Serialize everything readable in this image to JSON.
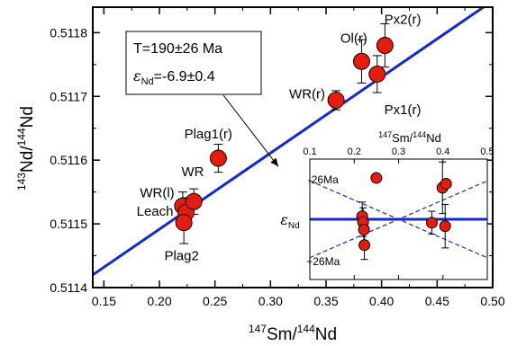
{
  "chart_data": [
    {
      "type": "scatter",
      "xlabel_parts": {
        "sup1": "147",
        "base1": "Sm/",
        "sup2": "144",
        "base2": "Nd"
      },
      "ylabel_parts": {
        "sup1": "143",
        "base1": "Nd/",
        "sup2": "144",
        "base2": "Nd"
      },
      "xlim": [
        0.14,
        0.5
      ],
      "ylim": [
        0.5114,
        0.51184
      ],
      "x_ticks": [
        "0.15",
        "0.20",
        "0.25",
        "0.30",
        "0.35",
        "0.40",
        "0.45",
        "0.50"
      ],
      "y_ticks": [
        "0.5114",
        "0.5115",
        "0.5116",
        "0.5117",
        "0.5118"
      ],
      "isochron": {
        "x": [
          0.14,
          0.5
        ],
        "y": [
          0.51142,
          0.51185
        ],
        "color": "#1428d8"
      },
      "annotation": {
        "line1": "T=190±26 Ma",
        "eps_symbol": "ε",
        "eps_sub": "Nd",
        "eps_value": "=-6.9±0.4",
        "arrow_to": {
          "x": 0.307,
          "y": 0.51159
        }
      },
      "points": [
        {
          "x": 0.221,
          "y": 0.511528,
          "err": 2.2e-05
        },
        {
          "x": 0.224,
          "y": 0.511518,
          "err": 2.3e-05
        },
        {
          "x": 0.222,
          "y": 0.511502,
          "err": 3.3e-05
        },
        {
          "x": 0.231,
          "y": 0.511535,
          "err": 2e-05
        },
        {
          "x": 0.253,
          "y": 0.511603,
          "err": 2.2e-05
        },
        {
          "x": 0.359,
          "y": 0.511694,
          "err": 1.5e-05
        },
        {
          "x": 0.382,
          "y": 0.511755,
          "err": 3.4e-05
        },
        {
          "x": 0.396,
          "y": 0.511735,
          "err": 2.9e-05
        },
        {
          "x": 0.403,
          "y": 0.51178,
          "err": 3.4e-05
        }
      ],
      "point_labels": [
        {
          "text": "Plag1(r)",
          "x": 0.244,
          "y": 0.511634
        },
        {
          "text": "WR",
          "x": 0.23,
          "y": 0.511575
        },
        {
          "text": "WR(l)",
          "x": 0.198,
          "y": 0.511542
        },
        {
          "text": "Leach",
          "x": 0.196,
          "y": 0.511513
        },
        {
          "text": "Plag2",
          "x": 0.22,
          "y": 0.511443
        },
        {
          "text": "WR(r)",
          "x": 0.333,
          "y": 0.511697
        },
        {
          "text": "Ol(r)",
          "x": 0.375,
          "y": 0.511784
        },
        {
          "text": "Px2(r)",
          "x": 0.419,
          "y": 0.511814
        },
        {
          "text": "Px1(r)",
          "x": 0.419,
          "y": 0.511672
        }
      ],
      "colors": {
        "point_fill": "#e61c0e",
        "point_stroke": "#000000"
      }
    },
    {
      "type": "scatter",
      "xlabel_parts": {
        "sup1": "147",
        "base1": "Sm/",
        "sup2": "144",
        "base2": "Nd"
      },
      "ylabel_parts": {
        "base": "ε",
        "sub": "Nd"
      },
      "xlim": [
        0.1,
        0.5
      ],
      "ylim": [
        -1.05,
        1.05
      ],
      "x_ticks": [
        {
          "v": 0.1,
          "label": "0.1"
        },
        {
          "v": 0.2,
          "label": "0.2"
        },
        {
          "v": 0.3,
          "label": "0.3"
        },
        {
          "v": 0.4,
          "label": "0.4"
        },
        {
          "v": 0.5,
          "label": "0.5"
        }
      ],
      "zero_line_color": "#1428d8",
      "dashed_lines": [
        {
          "x": [
            0.1,
            0.5
          ],
          "y": [
            0.67,
            -0.67
          ]
        },
        {
          "x": [
            0.1,
            0.5
          ],
          "y": [
            -0.67,
            0.67
          ]
        }
      ],
      "line_labels": [
        {
          "text": "-26Ma",
          "x": 0.13,
          "y": 0.69
        },
        {
          "text": "+26Ma",
          "x": 0.13,
          "y": -0.74
        }
      ],
      "points": [
        {
          "x": 0.218,
          "y": 0.05,
          "err": 0.25
        },
        {
          "x": 0.22,
          "y": -0.05,
          "err": 0.25
        },
        {
          "x": 0.222,
          "y": -0.18,
          "err": 0.28
        },
        {
          "x": 0.223,
          "y": -0.45,
          "err": 0.25
        },
        {
          "x": 0.25,
          "y": 0.72,
          "err": 0.0
        },
        {
          "x": 0.375,
          "y": -0.06,
          "err": 0.2
        },
        {
          "x": 0.399,
          "y": 0.55,
          "err": 0.45
        },
        {
          "x": 0.405,
          "y": -0.12,
          "err": 0.38
        },
        {
          "x": 0.407,
          "y": 0.62,
          "err": 0.0
        }
      ]
    }
  ]
}
